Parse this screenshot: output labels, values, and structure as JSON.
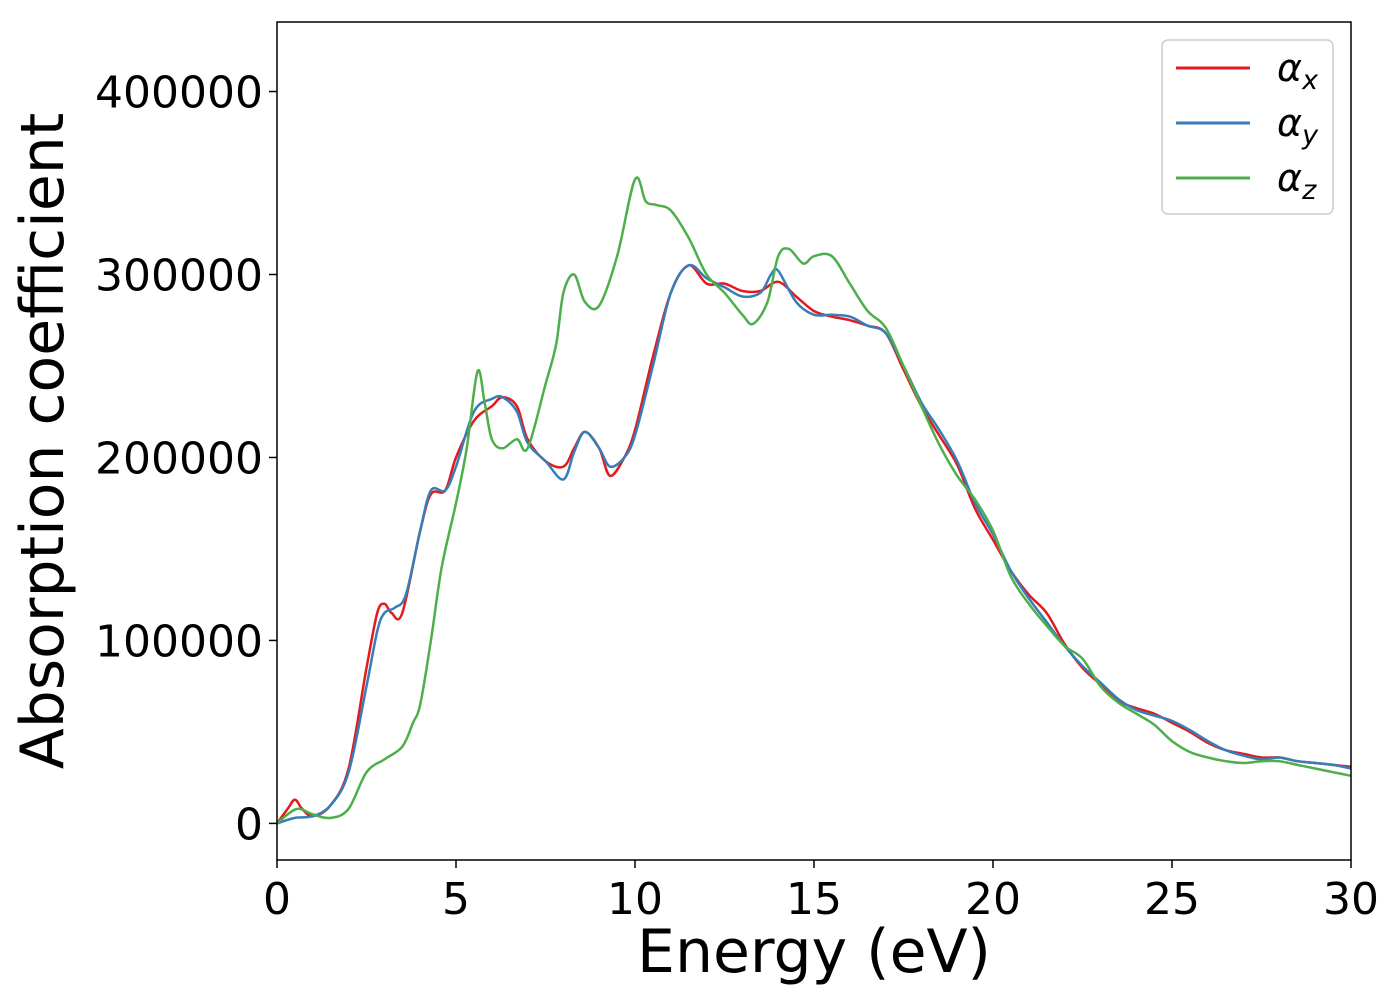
{
  "chart_data": {
    "type": "line",
    "xlabel": "Energy (eV)",
    "ylabel": "Absorption coefficient",
    "xlim": [
      0,
      30
    ],
    "ylim": [
      -20000,
      438000
    ],
    "xticks": [
      0,
      5,
      10,
      15,
      20,
      25,
      30
    ],
    "yticks": [
      0,
      100000,
      200000,
      300000,
      400000
    ],
    "grid": false,
    "legend_position": "top-right",
    "series": [
      {
        "name": "α",
        "subscript": "x",
        "color": "#e41a1c",
        "x": [
          0,
          0.3,
          0.5,
          0.7,
          1.0,
          1.5,
          2.0,
          2.5,
          2.8,
          3.0,
          3.2,
          3.5,
          4.0,
          4.3,
          4.7,
          5.0,
          5.5,
          6.0,
          6.3,
          6.7,
          7.0,
          7.5,
          8.0,
          8.3,
          8.6,
          9.0,
          9.3,
          9.7,
          10.0,
          10.5,
          11.0,
          11.5,
          12.0,
          12.5,
          13.0,
          13.5,
          14.0,
          14.5,
          15.0,
          15.5,
          16.0,
          16.5,
          17.0,
          17.5,
          18.0,
          18.5,
          19.0,
          19.5,
          20.0,
          20.5,
          21.0,
          21.5,
          22.0,
          22.5,
          23.0,
          23.5,
          24.0,
          24.5,
          25.0,
          25.5,
          26.0,
          26.5,
          27.0,
          27.5,
          28.0,
          28.5,
          29.0,
          29.5,
          30.0
        ],
        "y": [
          0,
          8000,
          13000,
          8000,
          4000,
          10000,
          30000,
          85000,
          115000,
          120000,
          115000,
          115000,
          160000,
          180000,
          182000,
          200000,
          220000,
          228000,
          233000,
          228000,
          210000,
          198000,
          195000,
          205000,
          214000,
          205000,
          190000,
          200000,
          215000,
          255000,
          290000,
          305000,
          295000,
          295000,
          291000,
          291000,
          296000,
          288000,
          280000,
          277000,
          275000,
          272000,
          268000,
          248000,
          228000,
          212000,
          196000,
          172000,
          155000,
          138000,
          125000,
          115000,
          98000,
          85000,
          76000,
          67000,
          63000,
          60000,
          55000,
          50000,
          44000,
          40000,
          38000,
          36000,
          36000,
          34000,
          33000,
          32000,
          31000
        ]
      },
      {
        "name": "α",
        "subscript": "y",
        "color": "#377eb8",
        "x": [
          0,
          0.5,
          1.0,
          1.5,
          2.0,
          2.5,
          2.8,
          3.0,
          3.3,
          3.6,
          4.0,
          4.3,
          4.7,
          5.0,
          5.5,
          6.0,
          6.3,
          6.7,
          7.0,
          7.5,
          8.0,
          8.3,
          8.6,
          9.0,
          9.3,
          9.7,
          10.0,
          10.5,
          11.0,
          11.5,
          12.0,
          12.5,
          13.0,
          13.5,
          13.8,
          14.0,
          14.5,
          15.0,
          15.5,
          16.0,
          16.5,
          17.0,
          17.5,
          18.0,
          18.5,
          19.0,
          19.5,
          20.0,
          20.5,
          21.0,
          21.5,
          22.0,
          22.5,
          23.0,
          23.5,
          24.0,
          24.5,
          25.0,
          25.5,
          26.0,
          26.5,
          27.0,
          27.5,
          28.0,
          28.5,
          29.0,
          29.5,
          30.0
        ],
        "y": [
          0,
          3000,
          4000,
          10000,
          28000,
          75000,
          105000,
          115000,
          118000,
          125000,
          160000,
          182000,
          182000,
          195000,
          225000,
          232000,
          233000,
          225000,
          208000,
          198000,
          188000,
          203000,
          214000,
          205000,
          195000,
          200000,
          212000,
          250000,
          290000,
          305000,
          298000,
          293000,
          288000,
          290000,
          300000,
          302000,
          285000,
          278000,
          278000,
          277000,
          272000,
          268000,
          250000,
          230000,
          215000,
          198000,
          175000,
          158000,
          138000,
          123000,
          110000,
          97000,
          86000,
          77000,
          68000,
          62000,
          59000,
          56000,
          51000,
          45000,
          40000,
          37000,
          35000,
          36000,
          34000,
          33000,
          32000,
          30000
        ]
      },
      {
        "name": "α",
        "subscript": "z",
        "color": "#4daf4a",
        "x": [
          0,
          0.3,
          0.6,
          1.0,
          1.5,
          2.0,
          2.5,
          3.0,
          3.5,
          3.8,
          4.0,
          4.3,
          4.6,
          5.0,
          5.3,
          5.6,
          5.8,
          6.0,
          6.3,
          6.7,
          7.0,
          7.5,
          7.8,
          8.0,
          8.3,
          8.6,
          9.0,
          9.5,
          10.0,
          10.3,
          10.6,
          11.0,
          11.5,
          12.0,
          12.5,
          13.0,
          13.3,
          13.7,
          14.0,
          14.3,
          14.7,
          15.0,
          15.5,
          16.0,
          16.5,
          17.0,
          17.5,
          18.0,
          18.5,
          19.0,
          19.5,
          20.0,
          20.5,
          21.0,
          21.5,
          22.0,
          22.5,
          23.0,
          23.5,
          24.0,
          24.5,
          25.0,
          25.5,
          26.0,
          26.5,
          27.0,
          27.5,
          28.0,
          28.5,
          29.0,
          29.5,
          30.0
        ],
        "y": [
          0,
          5000,
          8000,
          5000,
          3000,
          8000,
          28000,
          35000,
          42000,
          55000,
          65000,
          100000,
          140000,
          175000,
          205000,
          247000,
          230000,
          210000,
          205000,
          210000,
          205000,
          240000,
          262000,
          290000,
          300000,
          285000,
          283000,
          310000,
          352000,
          340000,
          338000,
          335000,
          320000,
          300000,
          290000,
          278000,
          273000,
          285000,
          310000,
          314000,
          306000,
          310000,
          310000,
          295000,
          280000,
          271000,
          250000,
          228000,
          207000,
          190000,
          177000,
          160000,
          135000,
          120000,
          108000,
          97000,
          90000,
          75000,
          66000,
          60000,
          54000,
          45000,
          39000,
          36000,
          34000,
          33000,
          34000,
          34000,
          32000,
          30000,
          28000,
          26000
        ]
      }
    ]
  }
}
